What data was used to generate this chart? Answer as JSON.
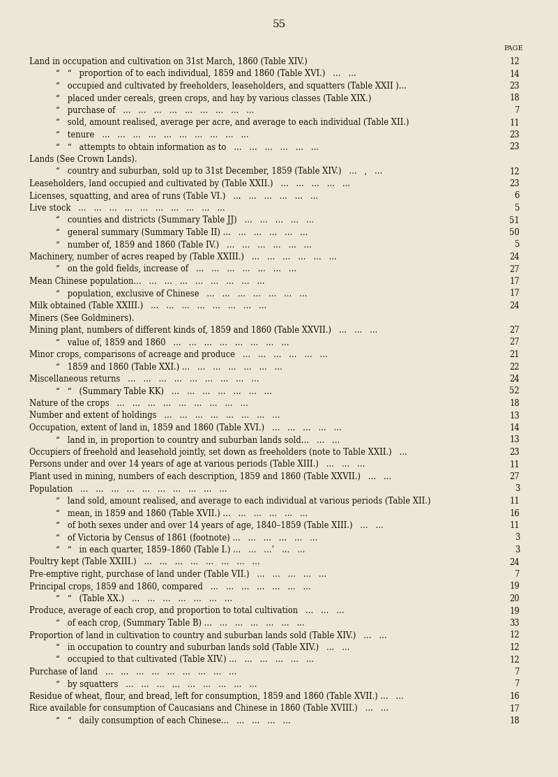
{
  "page_number": "55",
  "background_color": "#ede8d5",
  "text_color": "#1a1008",
  "page_label": "PAGE",
  "entries": [
    {
      "indent": 0,
      "text": "Land in occupation and cultivation on 31st March, 1860 (Table XIV.)   ...   ...   ...   12",
      "left_text": "Land in occupation and cultivation on 31st March, 1860 (Table XIV.)",
      "dots": "   ...   ...   ...",
      "page": "12",
      "style": "normal"
    },
    {
      "indent": 1,
      "text": "",
      "left_text": "“   “   proportion of to each individual, 1859 and 1860 (Table XVI.)   ...   ...",
      "dots": "",
      "page": "14",
      "style": "normal"
    },
    {
      "indent": 1,
      "text": "",
      "left_text": "“   occupied and cultivated by freeholders, leaseholders, and squatters (Table XXII )...",
      "dots": "   ...",
      "page": "23",
      "style": "normal"
    },
    {
      "indent": 1,
      "text": "",
      "left_text": "“   placed under cereals, green crops, and hay by various classes (Table XIX.)",
      "dots": "   ...   ...",
      "page": "18",
      "style": "normal"
    },
    {
      "indent": 1,
      "text": "",
      "left_text": "“   purchase of   ...   ...   ...   ...   ...   ...   ...   ...   ...",
      "dots": "",
      "page": "7",
      "style": "normal"
    },
    {
      "indent": 1,
      "text": "",
      "left_text": "“   sold, amount realised, average per acre, and average to each individual (Table XII.)",
      "dots": "   ...",
      "page": "11",
      "style": "normal"
    },
    {
      "indent": 1,
      "text": "",
      "left_text": "“   tenure   ...   ...   ...   ...   ...   ...   ...   ...   ...   ...",
      "dots": "",
      "page": "23",
      "style": "normal"
    },
    {
      "indent": 1,
      "text": "",
      "left_text": "“   “   attempts to obtain information as to   ...   ...   ...   ...   ...   ...",
      "dots": "",
      "page": "23",
      "style": "normal"
    },
    {
      "indent": 0,
      "text": "",
      "left_text": "Lands (See Crown Lands).",
      "dots": "",
      "page": "",
      "style": "normal"
    },
    {
      "indent": 1,
      "text": "",
      "left_text": "“   country and suburban, sold up to 31st December, 1859 (Table XIV.)   ...   ,   ...",
      "dots": "",
      "page": "12",
      "style": "normal"
    },
    {
      "indent": 0,
      "text": "",
      "left_text": "Leaseholders, land occupied and cultivated by (Table XXII.)   ...   ...   ...   ...   ...",
      "dots": "",
      "page": "23",
      "style": "normal"
    },
    {
      "indent": 0,
      "text": "",
      "left_text": "Licenses, squatting, and area of runs (Table VI.)   ...   ...   ...   ...   ...   ...",
      "dots": "",
      "page": "6",
      "style": "normal"
    },
    {
      "indent": 0,
      "text": "",
      "left_text": "Live stock   ...   ...   ...   ...   ...   ...   ...   ...   ...   ...",
      "dots": "",
      "page": "5",
      "style": "normal"
    },
    {
      "indent": 1,
      "text": "",
      "left_text": "“   counties and districts (Summary Table JJ)   ...   ...   ...   ...   ...",
      "dots": "",
      "page": "51",
      "style": "normal"
    },
    {
      "indent": 1,
      "text": "",
      "left_text": "“   general summary (Summary Table II) ...   ...   ...   ...   ...   ...",
      "dots": "",
      "page": "50",
      "style": "normal"
    },
    {
      "indent": 1,
      "text": "",
      "left_text": "“   number of, 1859 and 1860 (Table IV.)   ...   ...   ...   ...   ...   ...",
      "dots": "",
      "page": "5",
      "style": "normal"
    },
    {
      "indent": 0,
      "text": "",
      "left_text": "Machinery, number of acres reaped by (Table XXIII.)   ...   ...   ...   ...   ...   ...",
      "dots": "",
      "page": "24",
      "style": "normal"
    },
    {
      "indent": 1,
      "text": "",
      "left_text": "“   on the gold fields, increase of   ...   ...   ...   ...   ...   ...   ...",
      "dots": "",
      "page": "27",
      "style": "normal"
    },
    {
      "indent": 0,
      "text": "",
      "left_text": "Mean Chinese population...   ...   ...   ...   ...   ...   ...   ...   ...",
      "dots": "",
      "page": "17",
      "style": "normal"
    },
    {
      "indent": 1,
      "text": "",
      "left_text": "“   population, exclusive of Chinese   ...   ...   ...   ...   ...   ...   ...",
      "dots": "",
      "page": "17",
      "style": "normal"
    },
    {
      "indent": 0,
      "text": "",
      "left_text": "Milk obtained (Table XXIII.)   ...   ...   ...   ...   ...   ...   ...   ...",
      "dots": "",
      "page": "24",
      "style": "normal"
    },
    {
      "indent": 0,
      "text": "",
      "left_text": "Miners (See Goldminers).",
      "dots": "",
      "page": "",
      "style": "normal"
    },
    {
      "indent": 0,
      "text": "",
      "left_text": "Mining plant, numbers of different kinds of, 1859 and 1860 (Table XXVII.)   ...   ...   ...",
      "dots": "",
      "page": "27",
      "style": "normal"
    },
    {
      "indent": 1,
      "text": "",
      "left_text": "“   value of, 1859 and 1860   ...   ...   ...   ...   ...   ...   ...   ...",
      "dots": "",
      "page": "27",
      "style": "normal"
    },
    {
      "indent": 0,
      "text": "",
      "left_text": "Minor crops, comparisons of acreage and produce   ...   ...   ...   ...   ...   ...",
      "dots": "",
      "page": "21",
      "style": "normal"
    },
    {
      "indent": 1,
      "text": "",
      "left_text": "“   1859 and 1860 (Table XXI.) ...   ...   ...   ...   ...   ...   ...",
      "dots": "",
      "page": "22",
      "style": "normal"
    },
    {
      "indent": 0,
      "text": "",
      "left_text": "Miscellaneous returns   ...   ...   ...   ...   ...   ...   ...   ...   ...",
      "dots": "",
      "page": "24",
      "style": "normal"
    },
    {
      "indent": 1,
      "text": "",
      "left_text": "“   “   (Summary Table KK)   ...   ...   ...   ...   ...   ...   ...",
      "dots": "",
      "page": "52",
      "style": "normal"
    },
    {
      "indent": 0,
      "text": "",
      "left_text": "Nature of the crops   ...   ...   ...   ...   ...   ...   ...   ...   ...",
      "dots": "",
      "page": "18",
      "style": "normal"
    },
    {
      "indent": 0,
      "text": "",
      "left_text": "Number and extent of holdings   ...   ...   ...   ...   ...   ...   ...   ...",
      "dots": "",
      "page": "13",
      "style": "normal"
    },
    {
      "indent": 0,
      "text": "",
      "left_text": "Occupation, extent of land in, 1859 and 1860 (Table XVI.)   ...   ...   ...   ...   ...",
      "dots": "",
      "page": "14",
      "style": "normal"
    },
    {
      "indent": 1,
      "text": "",
      "left_text": "“   land in, in proportion to country and suburban lands sold...   ...   ...",
      "dots": "",
      "page": "13",
      "style": "normal"
    },
    {
      "indent": 0,
      "text": "",
      "left_text": "Occupiers of freehold and leasehold jointly, set down as freeholders (note to Table XXII.)   ...",
      "dots": "",
      "page": "23",
      "style": "normal"
    },
    {
      "indent": 0,
      "text": "",
      "left_text": "Persons under and over 14 years of age at various periods (Table XIII.)   ...   ...   ...",
      "dots": "",
      "page": "11",
      "style": "normal"
    },
    {
      "indent": 0,
      "text": "",
      "left_text": "Plant used in mining, numbers of each description, 1859 and 1860 (Table XXVII.)   ...   ...",
      "dots": "",
      "page": "27",
      "style": "normal"
    },
    {
      "indent": 0,
      "text": "",
      "left_text": "Population   ...   ...   ...   ...   ...   ...   ...   ...   ...   ...",
      "dots": "",
      "page": "3",
      "style": "normal"
    },
    {
      "indent": 1,
      "text": "",
      "left_text": "“   land sold, amount realised, and average to each individual at various periods (Table XII.)",
      "dots": "",
      "page": "11",
      "style": "normal"
    },
    {
      "indent": 1,
      "text": "",
      "left_text": "“   mean, in 1859 and 1860 (Table XVII.) ...   ...   ...   ...   ...   ...",
      "dots": "",
      "page": "16",
      "style": "normal"
    },
    {
      "indent": 1,
      "text": "",
      "left_text": "“   of both sexes under and over 14 years of age, 1840–1859 (Table XIII.)   ...   ...",
      "dots": "",
      "page": "11",
      "style": "normal"
    },
    {
      "indent": 1,
      "text": "",
      "left_text": "“   of Victoria by Census of 1861 (footnote) ...   ...   ...   ...   ...   ...",
      "dots": "",
      "page": "3",
      "style": "normal"
    },
    {
      "indent": 1,
      "text": "",
      "left_text": "“   “   in each quarter, 1859–1860 (Table I.) ...   ...   ...’   ...   ...",
      "dots": "",
      "page": "3",
      "style": "normal"
    },
    {
      "indent": 0,
      "text": "",
      "left_text": "Poultry kept (Table XXIII.)   ...   ...   ...   ...   ...   ...   ...   ...",
      "dots": "",
      "page": "24",
      "style": "normal"
    },
    {
      "indent": 0,
      "text": "",
      "left_text": "Pre-emptive right, purchase of land under (Table VII.)   ...   ...   ...   ...   ...",
      "dots": "",
      "page": "7",
      "style": "normal"
    },
    {
      "indent": 0,
      "text": "",
      "left_text": "Principal crops, 1859 and 1860, compared   ...   ...   ...   ...   ...   ...   ...",
      "dots": "",
      "page": "19",
      "style": "normal"
    },
    {
      "indent": 1,
      "text": "",
      "left_text": "“   “   (Table XX.)   ...   ...   ...   ...   ...   ...   ...",
      "dots": "",
      "page": "20",
      "style": "normal"
    },
    {
      "indent": 0,
      "text": "",
      "left_text": "Produce, average of each crop, and proportion to total cultivation   ...   ...   ...",
      "dots": "",
      "page": "19",
      "style": "normal"
    },
    {
      "indent": 1,
      "text": "",
      "left_text": "“   of each crop, (Summary Table B) ...   ...   ...   ...   ...   ...   ...",
      "dots": "",
      "page": "33",
      "style": "normal"
    },
    {
      "indent": 0,
      "text": "",
      "left_text": "Proportion of land in cultivation to country and suburban lands sold (Table XIV.)   ...   ...",
      "dots": "",
      "page": "12",
      "style": "normal"
    },
    {
      "indent": 1,
      "text": "",
      "left_text": "“   in occupation to country and suburban lands sold (Table XIV.)   ...   ...",
      "dots": "",
      "page": "12",
      "style": "normal"
    },
    {
      "indent": 1,
      "text": "",
      "left_text": "“   occupied to that cultivated (Table XIV.) ...   ...   ...   ...   ...   ...",
      "dots": "",
      "page": "12",
      "style": "normal"
    },
    {
      "indent": 0,
      "text": "",
      "left_text": "Purchase of land   ...   ...   ...   ...   ...   ...   ...   ...   ...",
      "dots": "",
      "page": "7",
      "style": "normal"
    },
    {
      "indent": 1,
      "text": "",
      "left_text": "“   by squatters   ...   ...   ...   ...   ...   ...   ...   ...   ...",
      "dots": "",
      "page": "7",
      "style": "normal"
    },
    {
      "indent": 0,
      "text": "",
      "left_text": "Residue of wheat, flour, and bread, left for consumption, 1859 and 1860 (Table XVII.) ...   ...",
      "dots": "",
      "page": "16",
      "style": "normal"
    },
    {
      "indent": 0,
      "text": "",
      "left_text": "Rice available for consumption of Caucasians and Chinese in 1860 (Table XVIII.)   ...   ...",
      "dots": "",
      "page": "17",
      "style": "normal"
    },
    {
      "indent": 1,
      "text": "",
      "left_text": "“   “   daily consumption of each Chinese...   ...   ...   ...   ...",
      "dots": "",
      "page": "18",
      "style": "normal"
    }
  ]
}
